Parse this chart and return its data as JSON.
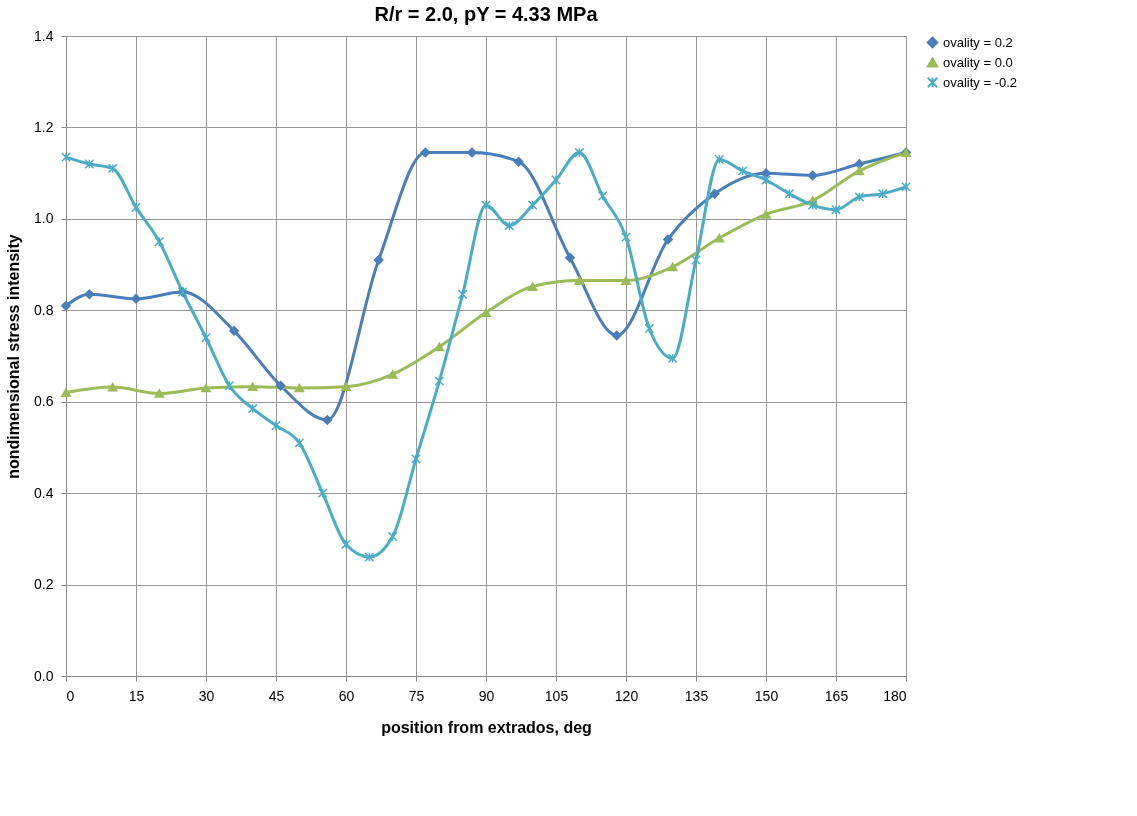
{
  "chart_data": {
    "type": "line",
    "title": "R/r = 2.0, pY = 4.33 MPa",
    "xlabel": "position from extrados, deg",
    "ylabel": "nondimensional stress intensity",
    "xlim": [
      0,
      180
    ],
    "xticks": [
      0,
      15,
      30,
      45,
      60,
      75,
      90,
      105,
      120,
      135,
      150,
      165,
      180
    ],
    "ylim": [
      0,
      1.4
    ],
    "yticks": [
      {
        "value": 0,
        "label": "0.0"
      },
      0.2,
      0.4,
      0.6,
      0.8,
      {
        "value": 1,
        "label": "1.0"
      },
      1.2,
      1.4
    ],
    "grid": true,
    "legend": "right",
    "series": [
      {
        "name": "ovality = 0.2",
        "color": "#4a7ebb",
        "marker": "diamond",
        "x": [
          0,
          5,
          15,
          25,
          36,
          46,
          56,
          67,
          77,
          87,
          97,
          108,
          118,
          129,
          139,
          150,
          160,
          170,
          180
        ],
        "values": [
          0.81,
          0.835,
          0.825,
          0.84,
          0.755,
          0.635,
          0.56,
          0.91,
          1.145,
          1.145,
          1.125,
          0.915,
          0.745,
          0.955,
          1.055,
          1.1,
          1.095,
          1.12,
          1.145
        ]
      },
      {
        "name": "ovality = 0.0",
        "color": "#9bbb59",
        "marker": "triangle",
        "x": [
          0,
          10,
          20,
          30,
          40,
          50,
          60,
          70,
          80,
          90,
          100,
          110,
          120,
          130,
          140,
          150,
          160,
          170,
          180
        ],
        "values": [
          0.62,
          0.632,
          0.618,
          0.63,
          0.633,
          0.63,
          0.633,
          0.66,
          0.72,
          0.795,
          0.852,
          0.865,
          0.865,
          0.895,
          0.958,
          1.01,
          1.04,
          1.105,
          1.145
        ]
      },
      {
        "name": "ovality = -0.2",
        "color": "#4bacc6",
        "marker": "cross",
        "x": [
          0,
          5,
          10,
          15,
          20,
          25,
          30,
          35,
          40,
          45,
          50,
          55,
          60,
          65,
          70,
          75,
          80,
          85,
          90,
          95,
          100,
          105,
          110,
          115,
          120,
          125,
          130,
          135,
          140,
          145,
          150,
          155,
          160,
          165,
          170,
          175,
          180
        ],
        "values": [
          1.135,
          1.12,
          1.11,
          1.025,
          0.95,
          0.84,
          0.74,
          0.635,
          0.585,
          0.548,
          0.51,
          0.4,
          0.288,
          0.26,
          0.305,
          0.475,
          0.645,
          0.835,
          1.03,
          0.985,
          1.03,
          1.085,
          1.145,
          1.05,
          0.96,
          0.76,
          0.695,
          0.91,
          1.13,
          1.105,
          1.085,
          1.055,
          1.03,
          1.02,
          1.048,
          1.055,
          1.07
        ]
      }
    ]
  }
}
